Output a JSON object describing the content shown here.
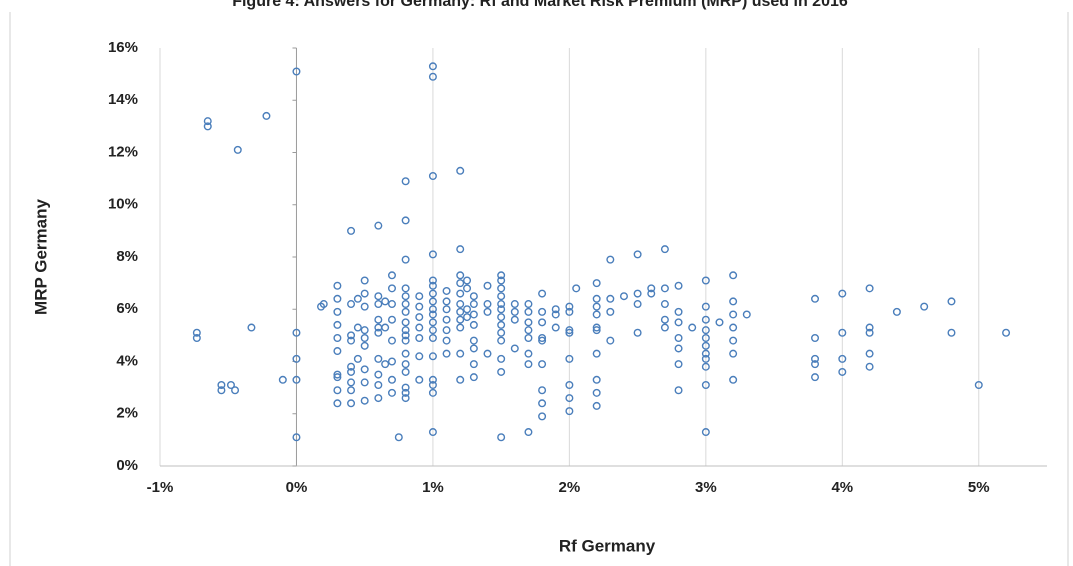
{
  "chart_data": {
    "type": "scatter",
    "title": "Figure 4: Answers for Germany: Rf and Market Risk Premium (MRP) used in 2016",
    "xlabel": "Rf Germany",
    "ylabel": "MRP Germany",
    "color": "#4a7ebb",
    "grid": true,
    "xlim": [
      -1,
      5.5
    ],
    "ylim": [
      0,
      16
    ],
    "xticks": [
      {
        "value": -1,
        "label": "-1%"
      },
      {
        "value": 0,
        "label": "0%"
      },
      {
        "value": 1,
        "label": "1%"
      },
      {
        "value": 2,
        "label": "2%"
      },
      {
        "value": 3,
        "label": "3%"
      },
      {
        "value": 4,
        "label": "4%"
      },
      {
        "value": 5,
        "label": "5%"
      }
    ],
    "yticks": [
      {
        "value": 0,
        "label": "0%"
      },
      {
        "value": 2,
        "label": "2%"
      },
      {
        "value": 4,
        "label": "4%"
      },
      {
        "value": 6,
        "label": "6%"
      },
      {
        "value": 8,
        "label": "8%"
      },
      {
        "value": 10,
        "label": "10%"
      },
      {
        "value": 12,
        "label": "12%"
      },
      {
        "value": 14,
        "label": "14%"
      },
      {
        "value": 16,
        "label": "16%"
      }
    ],
    "x": [
      -0.73,
      -0.73,
      -0.65,
      -0.65,
      -0.55,
      -0.55,
      -0.48,
      -0.45,
      -0.43,
      -0.33,
      -0.22,
      -0.1,
      0,
      0,
      0,
      0,
      0,
      0.18,
      0.2,
      0.3,
      0.3,
      0.3,
      0.3,
      0.3,
      0.3,
      0.3,
      0.3,
      0.3,
      0.3,
      0.4,
      0.4,
      0.4,
      0.4,
      0.4,
      0.4,
      0.4,
      0.4,
      0.4,
      0.45,
      0.45,
      0.45,
      0.5,
      0.5,
      0.5,
      0.5,
      0.5,
      0.5,
      0.5,
      0.5,
      0.5,
      0.6,
      0.6,
      0.6,
      0.6,
      0.6,
      0.6,
      0.6,
      0.6,
      0.6,
      0.6,
      0.65,
      0.65,
      0.65,
      0.7,
      0.7,
      0.7,
      0.7,
      0.7,
      0.7,
      0.7,
      0.7,
      0.75,
      0.8,
      0.8,
      0.8,
      0.8,
      0.8,
      0.8,
      0.8,
      0.8,
      0.8,
      0.8,
      0.8,
      0.8,
      0.8,
      0.8,
      0.8,
      0.8,
      0.8,
      0.9,
      0.9,
      0.9,
      0.9,
      0.9,
      0.9,
      0.9,
      1,
      1,
      1,
      1,
      1,
      1,
      1,
      1,
      1,
      1,
      1,
      1,
      1,
      1,
      1,
      1,
      1,
      1,
      1.1,
      1.1,
      1.1,
      1.1,
      1.1,
      1.1,
      1.1,
      1.2,
      1.2,
      1.2,
      1.2,
      1.2,
      1.2,
      1.2,
      1.2,
      1.2,
      1.2,
      1.2,
      1.25,
      1.25,
      1.25,
      1.25,
      1.3,
      1.3,
      1.3,
      1.3,
      1.3,
      1.3,
      1.3,
      1.3,
      1.4,
      1.4,
      1.4,
      1.4,
      1.5,
      1.5,
      1.5,
      1.5,
      1.5,
      1.5,
      1.5,
      1.5,
      1.5,
      1.5,
      1.5,
      1.5,
      1.5,
      1.6,
      1.6,
      1.6,
      1.6,
      1.7,
      1.7,
      1.7,
      1.7,
      1.7,
      1.7,
      1.7,
      1.7,
      1.8,
      1.8,
      1.8,
      1.8,
      1.8,
      1.8,
      1.8,
      1.8,
      1.8,
      1.9,
      1.9,
      1.9,
      2,
      2,
      2,
      2,
      2,
      2,
      2,
      2,
      2.05,
      2.2,
      2.2,
      2.2,
      2.2,
      2.2,
      2.2,
      2.2,
      2.2,
      2.2,
      2.2,
      2.3,
      2.3,
      2.3,
      2.3,
      2.4,
      2.5,
      2.5,
      2.5,
      2.5,
      2.6,
      2.6,
      2.7,
      2.7,
      2.7,
      2.7,
      2.7,
      2.8,
      2.8,
      2.8,
      2.8,
      2.8,
      2.8,
      2.8,
      2.9,
      3,
      3,
      3,
      3,
      3,
      3,
      3,
      3,
      3,
      3,
      3,
      3.1,
      3.2,
      3.2,
      3.2,
      3.2,
      3.2,
      3.2,
      3.2,
      3.3,
      3.8,
      3.8,
      3.8,
      3.8,
      3.8,
      4,
      4,
      4,
      4,
      4.2,
      4.2,
      4.2,
      4.2,
      4.2,
      4.4,
      4.6,
      4.8,
      4.8,
      5,
      5.2
    ],
    "values": [
      5.1,
      4.9,
      13.2,
      13.0,
      3.1,
      2.9,
      3.1,
      2.9,
      12.1,
      5.3,
      13.4,
      3.3,
      15.1,
      5.1,
      4.1,
      3.3,
      1.1,
      6.1,
      6.2,
      6.9,
      6.4,
      5.9,
      5.4,
      4.9,
      4.4,
      3.5,
      3.4,
      2.9,
      2.4,
      9.0,
      6.2,
      5.0,
      4.8,
      3.8,
      3.6,
      3.2,
      2.9,
      2.4,
      6.4,
      5.3,
      4.1,
      7.1,
      6.6,
      6.1,
      5.2,
      4.9,
      4.6,
      3.7,
      3.2,
      2.5,
      9.2,
      6.5,
      6.2,
      5.6,
      5.3,
      5.1,
      4.1,
      3.5,
      3.1,
      2.6,
      6.3,
      5.3,
      3.9,
      7.3,
      6.8,
      6.2,
      5.6,
      4.8,
      4.0,
      3.3,
      2.8,
      1.1,
      10.9,
      9.4,
      7.9,
      6.8,
      6.5,
      6.2,
      5.9,
      5.5,
      5.2,
      5.0,
      4.8,
      4.3,
      3.9,
      3.6,
      3.0,
      2.8,
      2.6,
      6.5,
      6.1,
      5.7,
      5.3,
      4.9,
      4.2,
      3.3,
      15.3,
      14.9,
      11.1,
      8.1,
      7.1,
      6.9,
      6.6,
      6.3,
      6.0,
      5.8,
      5.5,
      5.2,
      4.9,
      4.2,
      3.3,
      3.1,
      2.8,
      1.3,
      6.7,
      6.3,
      6.0,
      5.6,
      5.2,
      4.8,
      4.3,
      11.3,
      8.3,
      7.3,
      7.0,
      6.6,
      6.2,
      5.9,
      5.6,
      5.3,
      4.3,
      3.3,
      7.1,
      6.8,
      6.0,
      5.7,
      6.5,
      6.2,
      5.8,
      5.4,
      4.8,
      4.5,
      3.9,
      3.4,
      6.9,
      6.2,
      5.9,
      4.3,
      7.3,
      7.1,
      6.8,
      6.5,
      6.2,
      6.0,
      5.7,
      5.4,
      5.1,
      4.8,
      4.1,
      3.6,
      1.1,
      6.2,
      5.9,
      5.6,
      4.5,
      6.2,
      5.9,
      5.5,
      5.2,
      4.9,
      4.3,
      3.9,
      1.3,
      6.6,
      5.9,
      5.5,
      4.9,
      4.8,
      3.9,
      2.9,
      2.4,
      1.9,
      6.0,
      5.8,
      5.3,
      6.1,
      5.9,
      5.2,
      5.1,
      4.1,
      3.1,
      2.6,
      2.1,
      6.8,
      7.0,
      6.4,
      6.1,
      5.8,
      5.3,
      5.2,
      4.3,
      3.3,
      2.8,
      2.3,
      7.9,
      6.4,
      5.9,
      4.8,
      6.5,
      8.1,
      6.6,
      6.2,
      5.1,
      6.8,
      6.6,
      8.3,
      6.8,
      6.2,
      5.6,
      5.3,
      6.9,
      5.9,
      5.5,
      4.9,
      4.5,
      3.9,
      2.9,
      5.3,
      7.1,
      6.1,
      5.6,
      5.2,
      4.9,
      4.6,
      4.3,
      4.1,
      3.8,
      3.1,
      1.3,
      5.5,
      7.3,
      6.3,
      5.8,
      5.3,
      4.8,
      4.3,
      3.3,
      5.8,
      6.4,
      4.9,
      4.1,
      3.9,
      3.4,
      6.6,
      5.1,
      4.1,
      3.6,
      6.8,
      5.3,
      5.1,
      4.3,
      3.8,
      5.9,
      6.1,
      6.3,
      5.1,
      3.1,
      5.1
    ]
  }
}
